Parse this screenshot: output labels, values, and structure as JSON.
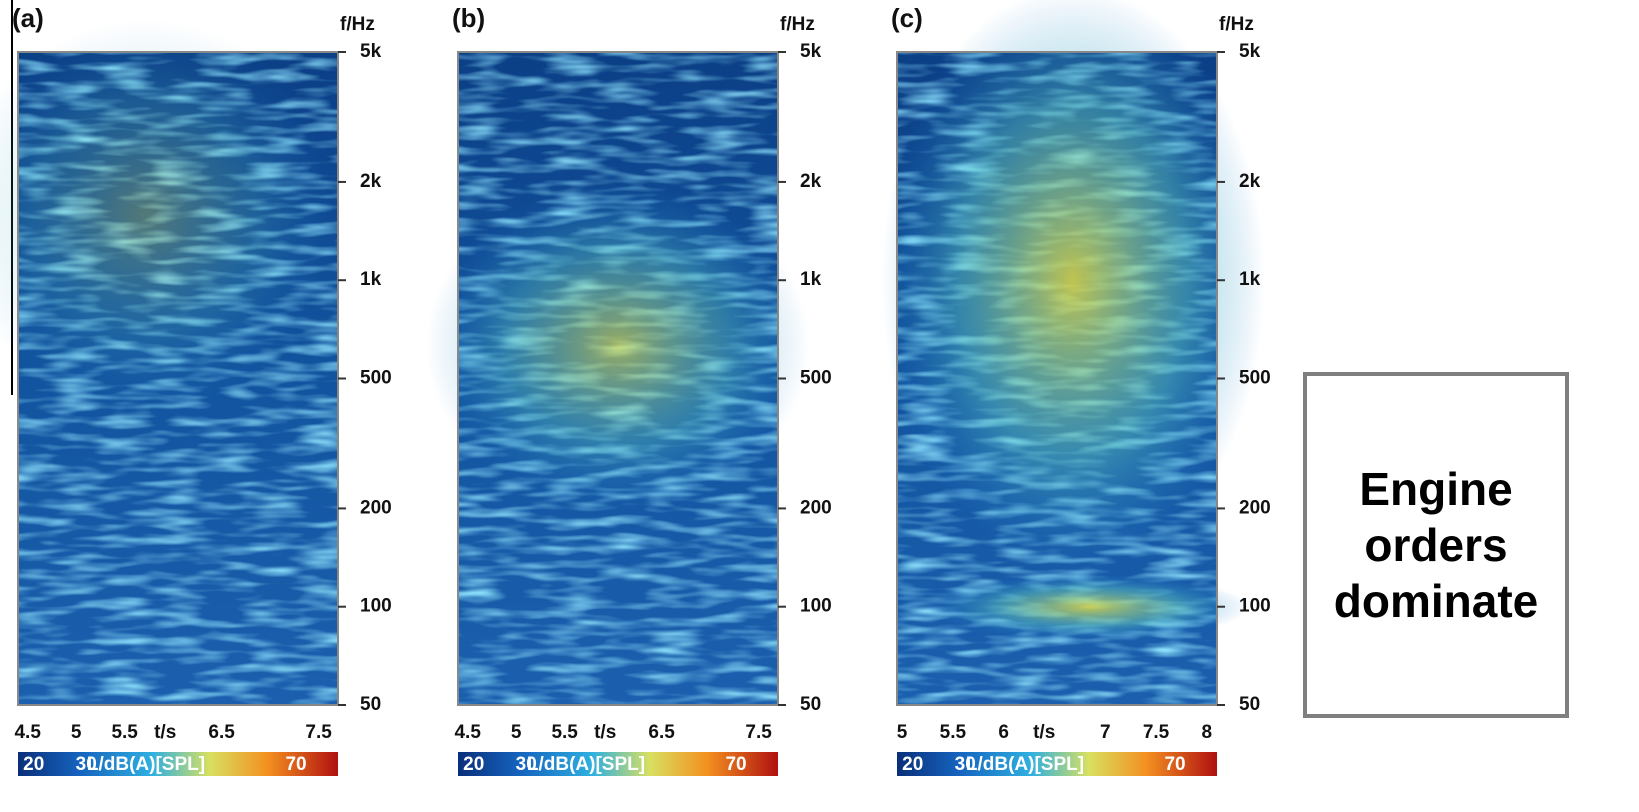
{
  "chart_data": [
    {
      "type": "spectrogram",
      "panel_label": "(a)",
      "ylabel": "f/Hz",
      "xlabel": "t/s",
      "log_y": true,
      "ylim": [
        50,
        5000
      ],
      "yticks": [
        {
          "value": 5000,
          "label": "5k"
        },
        {
          "value": 2000,
          "label": "2k"
        },
        {
          "value": 1000,
          "label": "1k"
        },
        500,
        200,
        100,
        50
      ],
      "xlim": [
        4.4,
        7.7
      ],
      "xticks": [
        4.5,
        5,
        5.5,
        6.5,
        7.5
      ],
      "colorbar_label": "L/dB(A)[SPL]",
      "clim": [
        17,
        78
      ],
      "cticks": [
        20,
        30,
        70
      ]
    },
    {
      "type": "spectrogram",
      "panel_label": "(b)",
      "ylabel": "f/Hz",
      "xlabel": "t/s",
      "log_y": true,
      "ylim": [
        50,
        5000
      ],
      "yticks": [
        {
          "value": 5000,
          "label": "5k"
        },
        {
          "value": 2000,
          "label": "2k"
        },
        {
          "value": 1000,
          "label": "1k"
        },
        500,
        200,
        100,
        50
      ],
      "xlim": [
        4.4,
        7.7
      ],
      "xticks": [
        4.5,
        5,
        5.5,
        6.5,
        7.5
      ],
      "colorbar_label": "L/dB(A)[SPL]",
      "clim": [
        17,
        78
      ],
      "cticks": [
        20,
        30,
        70
      ]
    },
    {
      "type": "spectrogram",
      "panel_label": "(c)",
      "ylabel": "f/Hz",
      "xlabel": "t/s",
      "log_y": true,
      "ylim": [
        50,
        5000
      ],
      "yticks": [
        {
          "value": 5000,
          "label": "5k"
        },
        {
          "value": 2000,
          "label": "2k"
        },
        {
          "value": 1000,
          "label": "1k"
        },
        500,
        200,
        100,
        50
      ],
      "xlim": [
        4.95,
        8.1
      ],
      "xticks": [
        5,
        5.5,
        6,
        7,
        7.5,
        8
      ],
      "colorbar_label": "L/dB(A)[SPL]",
      "clim": [
        17,
        78
      ],
      "cticks": [
        20,
        30,
        70
      ]
    }
  ],
  "callout": "Engine orders dominate"
}
